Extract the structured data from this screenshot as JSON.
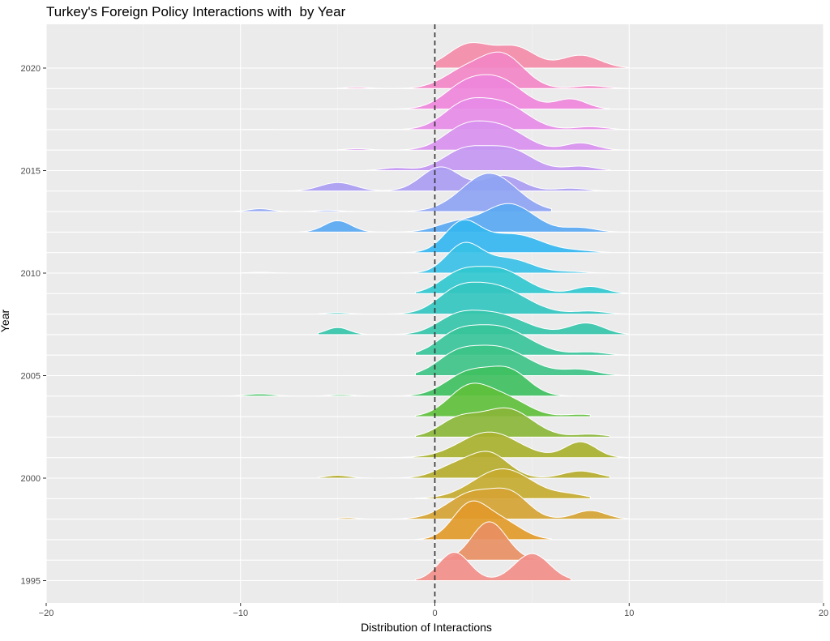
{
  "title": "Turkey's Foreign Policy Interactions with  by Year",
  "chart_data": {
    "type": "ridgeline",
    "title": "Turkey's Foreign Policy Interactions with  by Year",
    "xlabel": "Distribution of Interactions",
    "ylabel": "Year",
    "xlim": [
      -20,
      20
    ],
    "x_ticks": [
      "-20",
      "-10",
      "0",
      "10",
      "20"
    ],
    "y_ticks": [
      "1995",
      "2000",
      "2005",
      "2010",
      "2015",
      "2020"
    ],
    "reference_line": {
      "x": 0,
      "style": "dashed"
    },
    "grid": true,
    "background": "#ebebeb",
    "series": [
      {
        "year": 1995,
        "color": "#f28e8a",
        "range": [
          -1,
          7
        ],
        "peaks": [
          [
            1,
            1.0,
            0.8
          ],
          [
            5,
            0.95,
            0.9
          ]
        ]
      },
      {
        "year": 1996,
        "color": "#e88f63",
        "range": [
          0,
          6
        ],
        "peaks": [
          [
            2.8,
            1.35,
            0.9
          ]
        ]
      },
      {
        "year": 1997,
        "color": "#e29a2a",
        "range": [
          -1,
          6
        ],
        "peaks": [
          [
            1.8,
            1.2,
            0.9
          ],
          [
            3.5,
            0.6,
            1.0
          ]
        ]
      },
      {
        "year": 1998,
        "color": "#d5a333",
        "range": [
          -5,
          10
        ],
        "peaks": [
          [
            -4.5,
            0.05,
            0.5
          ],
          [
            2,
            0.95,
            1.3
          ],
          [
            4,
            0.7,
            0.9
          ],
          [
            8,
            0.3,
            0.8
          ]
        ]
      },
      {
        "year": 1999,
        "color": "#c6ab30",
        "range": [
          -1,
          8
        ],
        "peaks": [
          [
            3.5,
            1.05,
            1.5
          ],
          [
            7,
            0.12,
            0.8
          ]
        ]
      },
      {
        "year": 2000,
        "color": "#b5ad2e",
        "range": [
          -6,
          9
        ],
        "peaks": [
          [
            -5,
            0.1,
            0.6
          ],
          [
            2.8,
            0.85,
            1.0
          ],
          [
            1,
            0.4,
            1.0
          ],
          [
            7.5,
            0.25,
            0.9
          ]
        ]
      },
      {
        "year": 2001,
        "color": "#a8b12f",
        "range": [
          -3,
          10
        ],
        "peaks": [
          [
            2.8,
            0.9,
            1.5
          ],
          [
            7.5,
            0.55,
            0.8
          ]
        ]
      },
      {
        "year": 2002,
        "color": "#8ab638",
        "range": [
          -1,
          9
        ],
        "peaks": [
          [
            3.7,
            1.0,
            1.3
          ],
          [
            1.2,
            0.6,
            1.0
          ],
          [
            8,
            0.1,
            0.8
          ]
        ]
      },
      {
        "year": 2003,
        "color": "#5fbf3c",
        "range": [
          -1,
          8
        ],
        "peaks": [
          [
            1.8,
            1.05,
            1.1
          ],
          [
            3.8,
            0.55,
            1.1
          ],
          [
            7.5,
            0.08,
            0.8
          ]
        ]
      },
      {
        "year": 2004,
        "color": "#3fc061",
        "range": [
          -11,
          9
        ],
        "peaks": [
          [
            -9,
            0.08,
            0.7
          ],
          [
            -4.8,
            0.05,
            0.6
          ],
          [
            1.8,
            0.85,
            1.2
          ],
          [
            3.9,
            0.8,
            1.0
          ]
        ]
      },
      {
        "year": 2005,
        "color": "#3dc387",
        "range": [
          -1,
          10
        ],
        "peaks": [
          [
            3.2,
            1.0,
            1.6
          ],
          [
            1,
            0.5,
            1.0
          ],
          [
            7.5,
            0.2,
            0.9
          ]
        ]
      },
      {
        "year": 2006,
        "color": "#38c49a",
        "range": [
          -1,
          10
        ],
        "peaks": [
          [
            3.2,
            1.0,
            1.6
          ],
          [
            1,
            0.5,
            1.0
          ],
          [
            8,
            0.1,
            0.8
          ]
        ]
      },
      {
        "year": 2007,
        "color": "#35c4aa",
        "range": [
          -6,
          10
        ],
        "peaks": [
          [
            -5,
            0.25,
            0.6
          ],
          [
            3,
            0.75,
            1.6
          ],
          [
            1,
            0.4,
            1.0
          ],
          [
            7.8,
            0.4,
            0.9
          ]
        ]
      },
      {
        "year": 2008,
        "color": "#34c6c0",
        "range": [
          -6,
          10
        ],
        "peaks": [
          [
            -5,
            0.05,
            0.6
          ],
          [
            3,
            1.0,
            1.6
          ],
          [
            1,
            0.5,
            1.0
          ],
          [
            8,
            0.1,
            0.8
          ]
        ]
      },
      {
        "year": 2009,
        "color": "#31c7cf",
        "range": [
          -1,
          10
        ],
        "peaks": [
          [
            3.3,
            0.85,
            1.3
          ],
          [
            1.2,
            0.6,
            1.0
          ],
          [
            8,
            0.25,
            0.8
          ]
        ]
      },
      {
        "year": 2010,
        "color": "#38c0e6",
        "range": [
          -10,
          9
        ],
        "peaks": [
          [
            -9,
            0.03,
            0.6
          ],
          [
            1.5,
            1.0,
            0.9
          ],
          [
            3.8,
            0.5,
            1.2
          ],
          [
            7,
            0.05,
            0.8
          ]
        ]
      },
      {
        "year": 2011,
        "color": "#35b6f0",
        "range": [
          -3,
          9
        ],
        "peaks": [
          [
            1.4,
            1.0,
            0.9
          ],
          [
            4,
            0.65,
            1.5
          ],
          [
            7.5,
            0.05,
            0.8
          ]
        ]
      },
      {
        "year": 2012,
        "color": "#5aa8f2",
        "range": [
          -7,
          10
        ],
        "peaks": [
          [
            -5,
            0.4,
            0.7
          ],
          [
            3.8,
            1.0,
            1.3
          ],
          [
            1,
            0.3,
            1.0
          ],
          [
            7.5,
            0.15,
            0.8
          ]
        ]
      },
      {
        "year": 2013,
        "color": "#8ea3f3",
        "range": [
          -11,
          6
        ],
        "peaks": [
          [
            -9,
            0.1,
            0.6
          ],
          [
            -5.5,
            0.05,
            0.6
          ],
          [
            2.8,
            1.35,
            1.4
          ]
        ]
      },
      {
        "year": 2014,
        "color": "#aa9cf2",
        "range": [
          -8,
          9
        ],
        "peaks": [
          [
            -5,
            0.3,
            0.9
          ],
          [
            0.3,
            0.85,
            1.0
          ],
          [
            3.5,
            0.55,
            1.0
          ],
          [
            7,
            0.1,
            0.8
          ]
        ]
      },
      {
        "year": 2015,
        "color": "#c497f2",
        "range": [
          -3.5,
          9
        ],
        "peaks": [
          [
            -2,
            0.1,
            0.7
          ],
          [
            1.5,
            0.7,
            1.1
          ],
          [
            3.8,
            0.75,
            1.2
          ],
          [
            7.5,
            0.15,
            0.8
          ]
        ]
      },
      {
        "year": 2016,
        "color": "#d891ee",
        "range": [
          -5,
          10
        ],
        "peaks": [
          [
            -4,
            0.05,
            0.6
          ],
          [
            1.5,
            0.75,
            1.1
          ],
          [
            3.5,
            0.75,
            1.2
          ],
          [
            7.5,
            0.25,
            0.8
          ]
        ]
      },
      {
        "year": 2017,
        "color": "#e68be7",
        "range": [
          -10,
          10
        ],
        "peaks": [
          [
            -9,
            0.01,
            0.5
          ],
          [
            1.5,
            0.85,
            1.1
          ],
          [
            3.6,
            0.85,
            1.2
          ],
          [
            8,
            0.1,
            0.8
          ]
        ]
      },
      {
        "year": 2018,
        "color": "#ee86da",
        "range": [
          -3,
          9
        ],
        "peaks": [
          [
            1.5,
            0.75,
            1.1
          ],
          [
            3.4,
            0.95,
            1.2
          ],
          [
            7,
            0.35,
            0.8
          ]
        ]
      },
      {
        "year": 2019,
        "color": "#f286c6",
        "range": [
          -5,
          10
        ],
        "peaks": [
          [
            -4,
            0.05,
            0.6
          ],
          [
            1.5,
            0.6,
            1.1
          ],
          [
            3.5,
            1.15,
            1.1
          ],
          [
            8,
            0.1,
            0.8
          ]
        ]
      },
      {
        "year": 2020,
        "color": "#f38ba8",
        "range": [
          0,
          10
        ],
        "peaks": [
          [
            1.8,
            0.85,
            1.1
          ],
          [
            4.2,
            0.7,
            1.0
          ],
          [
            7.5,
            0.45,
            1.0
          ]
        ]
      }
    ]
  }
}
